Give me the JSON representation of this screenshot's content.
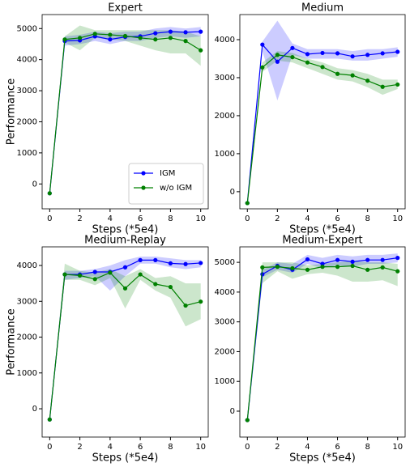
{
  "chart_data": [
    {
      "type": "line",
      "title": "Expert",
      "xlabel": "Steps (*5e4)",
      "ylabel": "Performance",
      "x": [
        0,
        1,
        2,
        3,
        4,
        5,
        6,
        7,
        8,
        9,
        10
      ],
      "xlim": [
        -0.5,
        10.5
      ],
      "xticks": [
        0,
        2,
        4,
        6,
        8,
        10
      ],
      "ylim": [
        -800,
        5450
      ],
      "yticks": [
        0,
        1000,
        2000,
        3000,
        4000,
        5000
      ],
      "legend": "lower right",
      "series": [
        {
          "name": "IGM",
          "color": "#0000ff",
          "values": [
            -300,
            4600,
            4620,
            4750,
            4650,
            4730,
            4750,
            4850,
            4900,
            4880,
            4900
          ],
          "lower": [
            -300,
            4450,
            4500,
            4600,
            4500,
            4600,
            4600,
            4700,
            4750,
            4700,
            4750
          ],
          "upper": [
            -300,
            4750,
            4800,
            4900,
            4850,
            4900,
            4900,
            5000,
            5050,
            5000,
            5050
          ]
        },
        {
          "name": "w/o IGM",
          "color": "#008000",
          "values": [
            -300,
            4650,
            4700,
            4830,
            4800,
            4760,
            4700,
            4650,
            4700,
            4600,
            4300
          ],
          "lower": [
            -300,
            4550,
            4300,
            4700,
            4650,
            4600,
            4450,
            4300,
            4200,
            4200,
            3800
          ],
          "upper": [
            -300,
            4750,
            5100,
            4950,
            4950,
            4950,
            4950,
            4950,
            4950,
            4900,
            4750
          ]
        }
      ]
    },
    {
      "type": "line",
      "title": "Medium",
      "xlabel": "Steps (*5e4)",
      "x": [
        0,
        1,
        2,
        3,
        4,
        5,
        6,
        7,
        8,
        9,
        10
      ],
      "xlim": [
        -0.5,
        10.5
      ],
      "xticks": [
        0,
        2,
        4,
        6,
        8,
        10
      ],
      "ylim": [
        -450,
        4660
      ],
      "yticks": [
        0,
        1000,
        2000,
        3000,
        4000
      ],
      "series": [
        {
          "color": "#0000ff",
          "values": [
            -300,
            3870,
            3420,
            3780,
            3620,
            3650,
            3640,
            3560,
            3600,
            3640,
            3680
          ],
          "lower": [
            -300,
            3700,
            2400,
            3600,
            3500,
            3500,
            3500,
            3450,
            3450,
            3500,
            3550
          ],
          "upper": [
            -300,
            3950,
            4500,
            3900,
            3750,
            3750,
            3750,
            3700,
            3750,
            3750,
            3800
          ]
        },
        {
          "color": "#008000",
          "values": [
            -300,
            3270,
            3600,
            3540,
            3400,
            3280,
            3100,
            3060,
            2920,
            2760,
            2820
          ],
          "lower": [
            -300,
            3150,
            3450,
            3400,
            3250,
            3100,
            2950,
            2900,
            2750,
            2550,
            2700
          ],
          "upper": [
            -300,
            3400,
            3700,
            3650,
            3500,
            3400,
            3250,
            3200,
            3100,
            2950,
            2950
          ]
        }
      ]
    },
    {
      "type": "line",
      "title": "Medium-Replay",
      "xlabel": "Steps (*5e4)",
      "ylabel": "Performance",
      "x": [
        0,
        1,
        2,
        3,
        4,
        5,
        6,
        7,
        8,
        9,
        10
      ],
      "xlim": [
        -0.5,
        10.5
      ],
      "xticks": [
        0,
        2,
        4,
        6,
        8,
        10
      ],
      "ylim": [
        -790,
        4520
      ],
      "yticks": [
        0,
        1000,
        2000,
        3000,
        4000
      ],
      "series": [
        {
          "color": "#0000ff",
          "values": [
            -300,
            3750,
            3750,
            3820,
            3820,
            3950,
            4150,
            4150,
            4060,
            4040,
            4070
          ],
          "lower": [
            -300,
            3600,
            3650,
            3700,
            3300,
            3700,
            4050,
            4050,
            3950,
            3900,
            3950
          ],
          "upper": [
            -300,
            3850,
            3850,
            3900,
            4000,
            4150,
            4250,
            4250,
            4200,
            4150,
            4150
          ]
        },
        {
          "color": "#008000",
          "values": [
            -300,
            3750,
            3720,
            3620,
            3800,
            3360,
            3750,
            3480,
            3400,
            2880,
            2990
          ],
          "lower": [
            -300,
            3600,
            3600,
            3450,
            3650,
            2800,
            3600,
            3300,
            3100,
            2300,
            2500
          ],
          "upper": [
            -300,
            4050,
            3850,
            3800,
            3900,
            3700,
            3900,
            3650,
            3700,
            3500,
            3500
          ]
        }
      ]
    },
    {
      "type": "line",
      "title": "Medium-Expert",
      "xlabel": "Steps (*5e4)",
      "x": [
        0,
        1,
        2,
        3,
        4,
        5,
        6,
        7,
        8,
        9,
        10
      ],
      "xlim": [
        -0.5,
        10.5
      ],
      "xticks": [
        0,
        2,
        4,
        6,
        8,
        10
      ],
      "ylim": [
        -870,
        5520
      ],
      "yticks": [
        0,
        1000,
        2000,
        3000,
        4000,
        5000
      ],
      "series": [
        {
          "color": "#0000ff",
          "values": [
            -300,
            4600,
            4880,
            4750,
            5100,
            4950,
            5080,
            5020,
            5080,
            5080,
            5150
          ],
          "lower": [
            -300,
            4500,
            4750,
            4650,
            4950,
            4800,
            4900,
            4850,
            4950,
            4950,
            5000
          ],
          "upper": [
            -300,
            4750,
            5000,
            4950,
            5250,
            5150,
            5250,
            5200,
            5250,
            5250,
            5300
          ]
        },
        {
          "color": "#008000",
          "values": [
            -300,
            4830,
            4850,
            4800,
            4750,
            4850,
            4850,
            4880,
            4750,
            4830,
            4700
          ],
          "lower": [
            -300,
            4300,
            4700,
            4450,
            4600,
            4650,
            4550,
            4350,
            4350,
            4400,
            4200
          ],
          "upper": [
            -300,
            5000,
            5000,
            5000,
            4900,
            4950,
            5000,
            5050,
            5000,
            5000,
            4950
          ]
        }
      ]
    }
  ]
}
